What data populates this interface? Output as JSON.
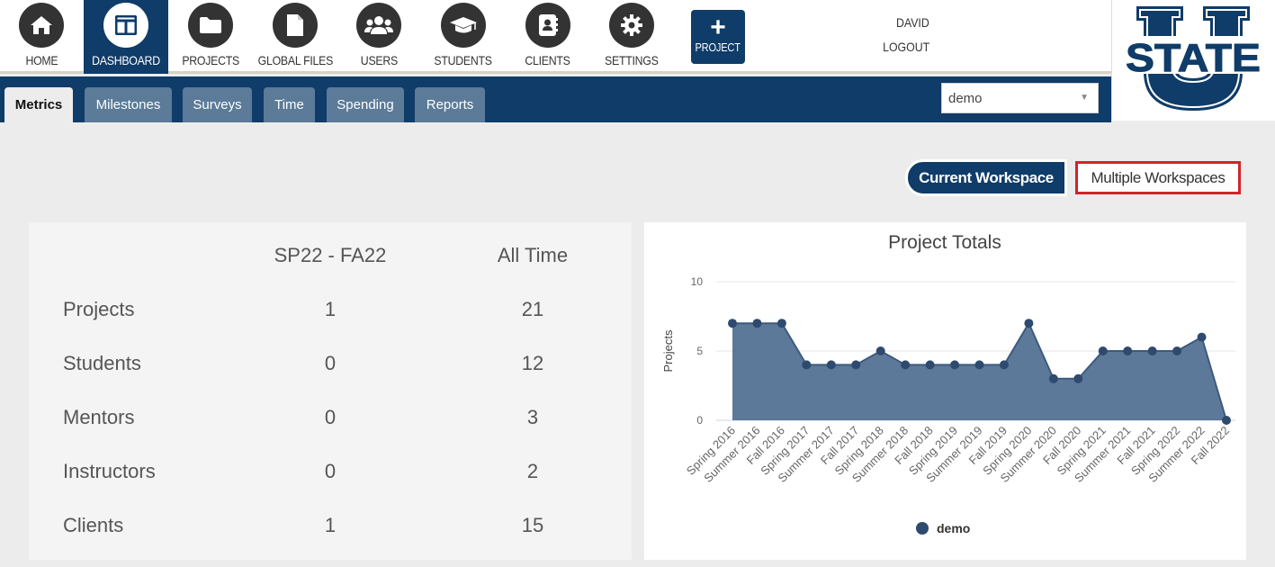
{
  "nav": {
    "items": [
      {
        "label": "HOME",
        "icon": "home-icon"
      },
      {
        "label": "DASHBOARD",
        "icon": "dashboard-icon"
      },
      {
        "label": "PROJECTS",
        "icon": "folder-icon"
      },
      {
        "label": "GLOBAL FILES",
        "icon": "file-icon"
      },
      {
        "label": "USERS",
        "icon": "users-icon"
      },
      {
        "label": "STUDENTS",
        "icon": "graduation-cap-icon"
      },
      {
        "label": "CLIENTS",
        "icon": "contact-book-icon"
      },
      {
        "label": "SETTINGS",
        "icon": "gear-icon"
      }
    ],
    "active": "DASHBOARD",
    "add_project_label": "PROJECT",
    "user_name": "DAVID",
    "logout_label": "LOGOUT"
  },
  "logo": {
    "text": "STATE",
    "letter": "U"
  },
  "tabs": {
    "items": [
      "Metrics",
      "Milestones",
      "Surveys",
      "Time",
      "Spending",
      "Reports"
    ],
    "active": "Metrics"
  },
  "workspace_select": {
    "value": "demo"
  },
  "workspace_toggle": {
    "current_label": "Current Workspace",
    "multiple_label": "Multiple Workspaces"
  },
  "metrics": {
    "col_period": "SP22 - FA22",
    "col_all": "All Time",
    "rows": [
      {
        "label": "Projects",
        "period": "1",
        "all": "21"
      },
      {
        "label": "Students",
        "period": "0",
        "all": "12"
      },
      {
        "label": "Mentors",
        "period": "0",
        "all": "3"
      },
      {
        "label": "Instructors",
        "period": "0",
        "all": "2"
      },
      {
        "label": "Clients",
        "period": "1",
        "all": "15"
      }
    ]
  },
  "colors": {
    "brand": "#0f3c68",
    "area_fill": "#4a6a8e",
    "highlight": "#d2232a"
  },
  "chart_data": {
    "type": "area",
    "title": "Project Totals",
    "ylabel": "Projects",
    "xlabel": "",
    "ylim": [
      0,
      10
    ],
    "yticks": [
      0,
      5,
      10
    ],
    "categories": [
      "Spring 2016",
      "Summer 2016",
      "Fall 2016",
      "Spring 2017",
      "Summer 2017",
      "Fall 2017",
      "Spring 2018",
      "Summer 2018",
      "Fall 2018",
      "Spring 2019",
      "Summer 2019",
      "Fall 2019",
      "Spring 2020",
      "Summer 2020",
      "Fall 2020",
      "Spring 2021",
      "Summer 2021",
      "Fall 2021",
      "Spring 2022",
      "Summer 2022",
      "Fall 2022"
    ],
    "series": [
      {
        "name": "demo",
        "values": [
          7,
          7,
          7,
          4,
          4,
          4,
          5,
          4,
          4,
          4,
          4,
          4,
          7,
          3,
          3,
          5,
          5,
          5,
          5,
          6,
          0
        ]
      }
    ],
    "legend": "bottom-center",
    "grid": true
  }
}
